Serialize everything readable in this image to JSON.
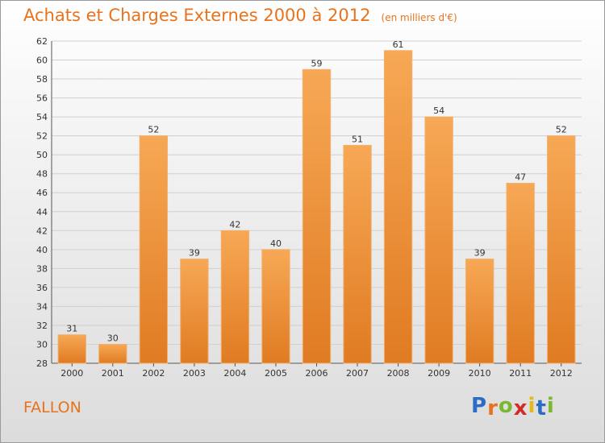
{
  "title": "Achats et Charges Externes 2000 à 2012",
  "subtitle": "(en milliers d'€)",
  "commune": "FALLON",
  "logo": {
    "text": "Proxiti",
    "letter_colors": [
      "#2b6cc4",
      "#e8731c",
      "#7cb82f",
      "#d42a2a",
      "#e8b71c",
      "#2b6cc4",
      "#7cb82f"
    ]
  },
  "colors": {
    "bar_top": "#f7a855",
    "bar_bottom": "#e07b22",
    "accent": "#e8731c",
    "grid": "#d0d0d0",
    "axis": "#555555"
  },
  "chart_data": {
    "type": "bar",
    "title": "Achats et Charges Externes 2000 à 2012",
    "subtitle": "(en milliers d'€)",
    "categories": [
      "2000",
      "2001",
      "2002",
      "2003",
      "2004",
      "2005",
      "2006",
      "2007",
      "2008",
      "2009",
      "2010",
      "2011",
      "2012"
    ],
    "values": [
      31,
      30,
      52,
      39,
      42,
      40,
      59,
      51,
      61,
      54,
      39,
      47,
      52
    ],
    "ylim": [
      28,
      62
    ],
    "yticks": [
      28,
      30,
      32,
      34,
      36,
      38,
      40,
      42,
      44,
      46,
      48,
      50,
      52,
      54,
      56,
      58,
      60,
      62
    ],
    "grid": true,
    "data_labels": true
  }
}
